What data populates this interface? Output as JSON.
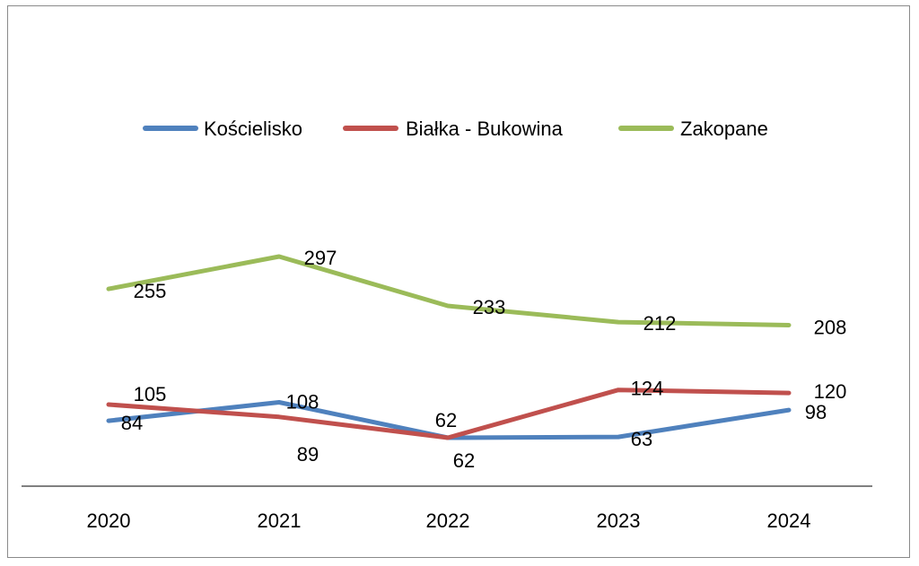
{
  "chart_data": {
    "type": "line",
    "categories": [
      "2020",
      "2021",
      "2022",
      "2023",
      "2024"
    ],
    "series": [
      {
        "name": "Kościelisko",
        "color": "#4F81BD",
        "values": [
          84,
          108,
          62,
          63,
          98
        ]
      },
      {
        "name": "Białka - Bukowina",
        "color": "#C0504D",
        "values": [
          105,
          89,
          62,
          124,
          120
        ]
      },
      {
        "name": "Zakopane",
        "color": "#9BBB59",
        "values": [
          255,
          297,
          233,
          212,
          208
        ]
      }
    ],
    "legend_position": "top",
    "grid": false,
    "ylim": [
      40,
      340
    ]
  }
}
